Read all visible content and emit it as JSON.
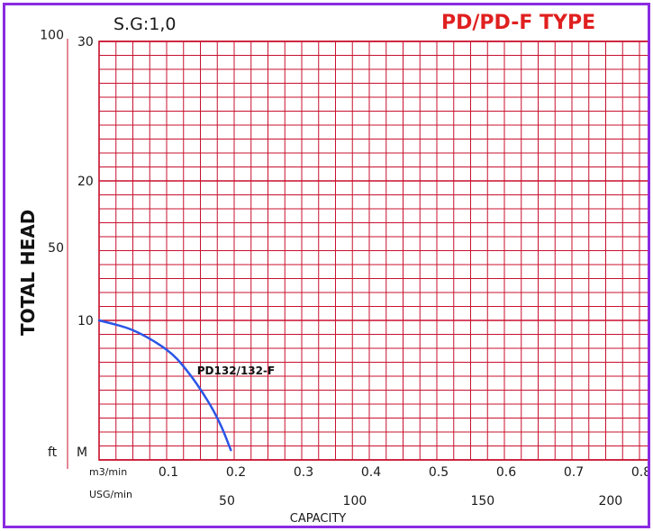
{
  "chart_data": {
    "type": "line",
    "header": {
      "specific_gravity": "S.G:1,0",
      "type_title": "PD/PD-F TYPE"
    },
    "ylabel": "TOTAL  HEAD",
    "xlabel": "CAPACITY",
    "y_axis_m": {
      "unit": "M",
      "ticks": [
        "10",
        "20",
        "30"
      ],
      "range": [
        0,
        30
      ]
    },
    "y_axis_ft": {
      "unit": "ft",
      "ticks": [
        "50",
        "100"
      ]
    },
    "x_axis_m3min": {
      "unit": "m3/min",
      "ticks": [
        "0.1",
        "0.2",
        "0.3",
        "0.4",
        "0.5",
        "0.6",
        "0.7",
        "0.8"
      ],
      "range": [
        0,
        0.8
      ]
    },
    "x_axis_usgmin": {
      "unit": "USG/min",
      "ticks": [
        "50",
        "100",
        "150",
        "200"
      ]
    },
    "grid": true,
    "series": [
      {
        "name": "PD132/132-F",
        "color": "#2b55e6",
        "points": [
          [
            0.0,
            10.0
          ],
          [
            0.05,
            9.3
          ],
          [
            0.1,
            7.9
          ],
          [
            0.13,
            6.4
          ],
          [
            0.16,
            4.3
          ],
          [
            0.18,
            2.5
          ],
          [
            0.195,
            0.7
          ]
        ]
      }
    ]
  }
}
